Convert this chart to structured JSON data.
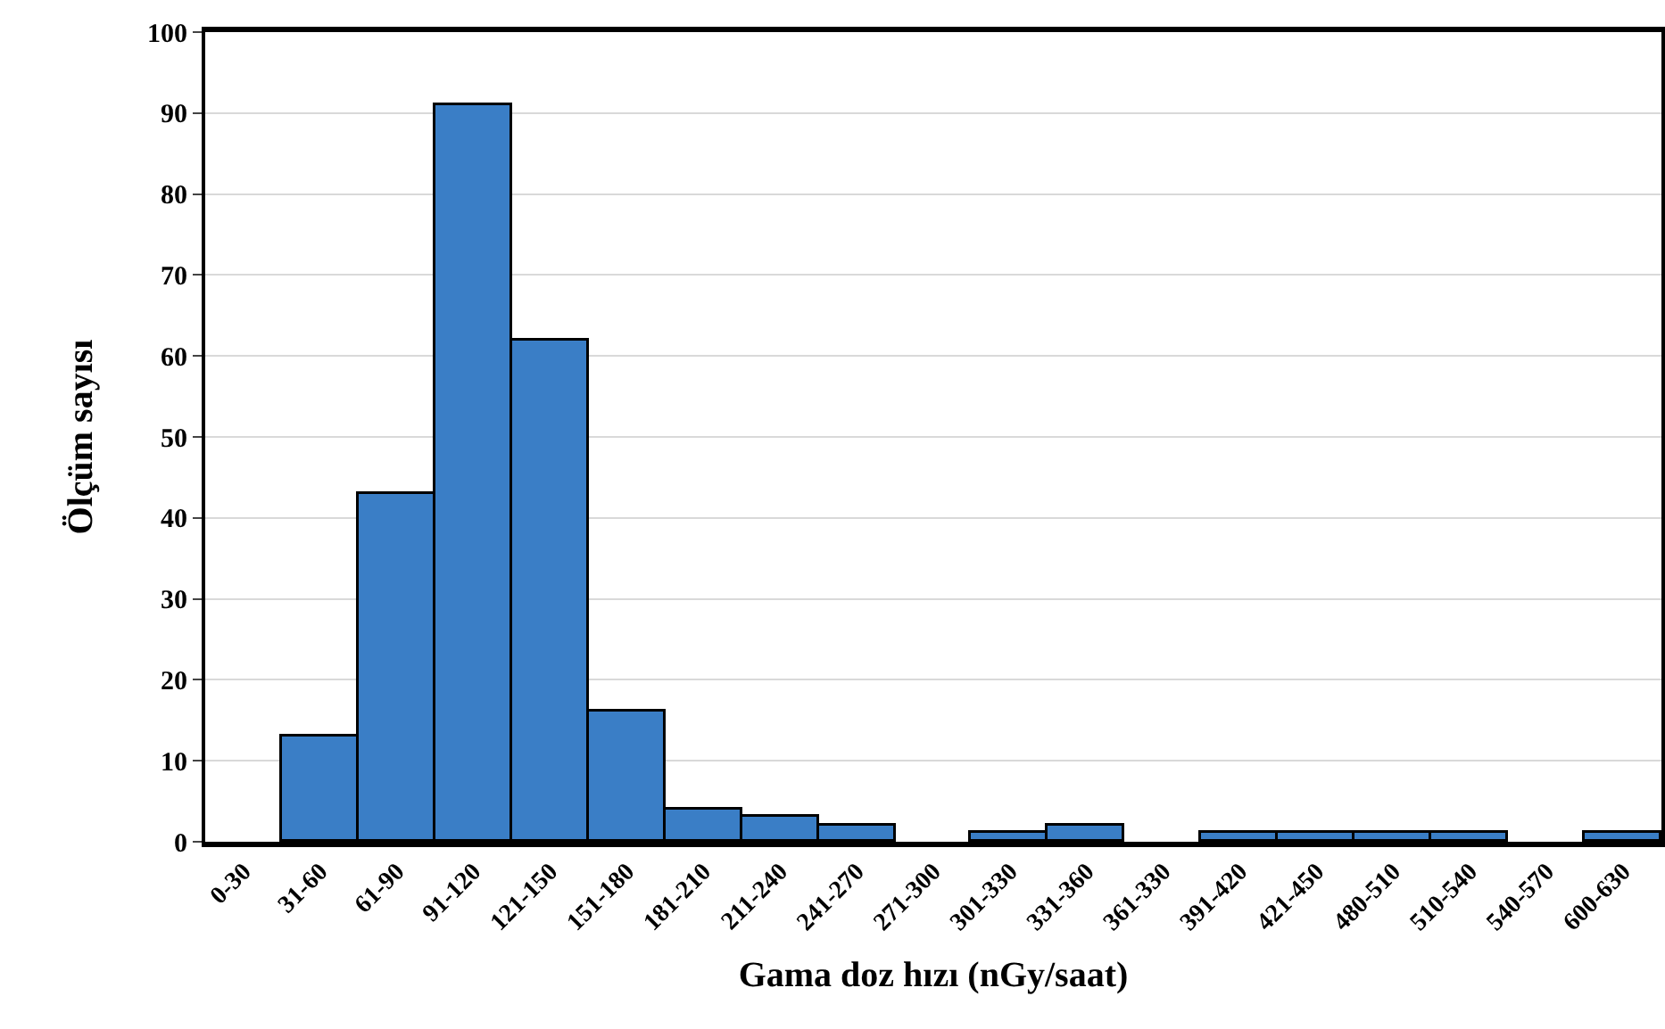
{
  "chart_data": {
    "type": "bar",
    "xlabel": "Gama doz hızı (nGy/saat)",
    "ylabel": "Ölçüm sayısı",
    "categories": [
      "0-30",
      "31-60",
      "61-90",
      "91-120",
      "121-150",
      "151-180",
      "181-210",
      "211-240",
      "241-270",
      "271-300",
      "301-330",
      "331-360",
      "361-330",
      "391-420",
      "421-450",
      "480-510",
      "510-540",
      "540-570",
      "600-630"
    ],
    "values": [
      0,
      13,
      43,
      91,
      62,
      16,
      4,
      3,
      2,
      0,
      1,
      2,
      0,
      1,
      1,
      1,
      1,
      0,
      1
    ],
    "color": "#3a7ec6",
    "ylim": [
      0,
      100
    ],
    "yticks": [
      0,
      10,
      20,
      30,
      40,
      50,
      60,
      70,
      80,
      90,
      100
    ],
    "grid": "y",
    "legend": false
  }
}
